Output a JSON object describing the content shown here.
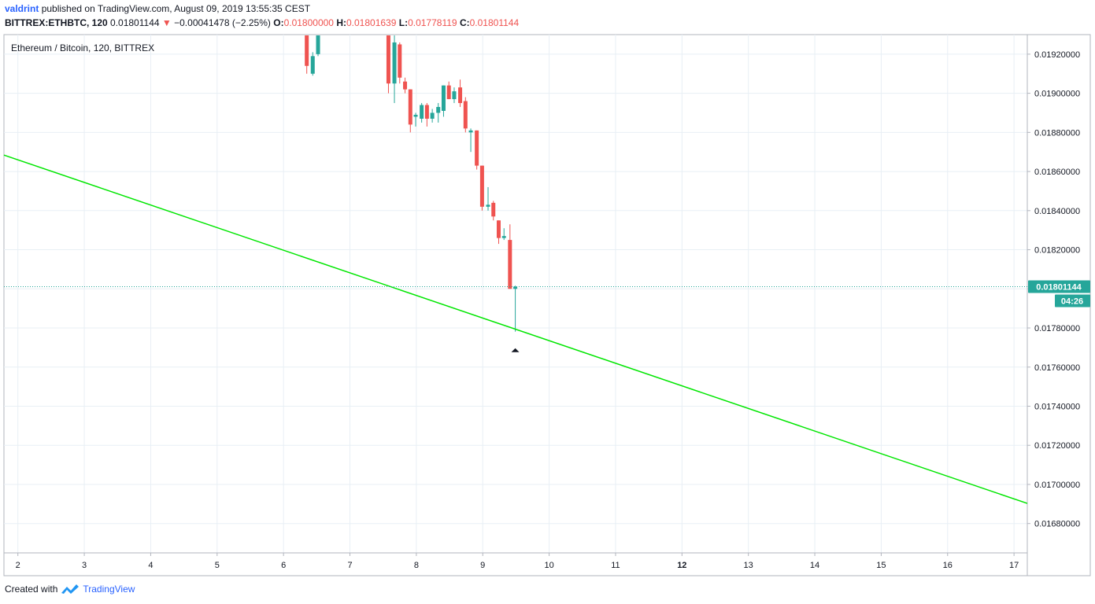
{
  "header": {
    "user": "valdrint",
    "published_text": "published on TradingView.com, August 09, 2019 13:55:35 CEST",
    "symbol": "BITTREX:ETHBTC, 120",
    "last": "0.01801144",
    "change": "−0.00041478 (−2.25%)",
    "o_label": "O:",
    "o_value": "0.01800000",
    "h_label": "H:",
    "h_value": "0.01801639",
    "l_label": "L:",
    "l_value": "0.01778119",
    "c_label": "C:",
    "c_value": "0.01801144"
  },
  "legend": "Ethereum / Bitcoin, 120, BITTREX",
  "price_badge": "0.01801144",
  "countdown_badge": "04:26",
  "footer": {
    "created": "Created with",
    "brand": "TradingView"
  },
  "colors": {
    "up": "#26a69a",
    "down": "#ef5350",
    "trendline": "#00e600",
    "price_line": "#26a69a",
    "grid": "#e8eff5"
  },
  "chart_data": {
    "type": "candlestick",
    "title": "Ethereum / Bitcoin, 120, BITTREX",
    "xlabel": "",
    "ylabel": "",
    "x_ticks": [
      "2",
      "3",
      "4",
      "5",
      "6",
      "7",
      "8",
      "9",
      "10",
      "11",
      "12",
      "13",
      "14",
      "15",
      "16",
      "17"
    ],
    "x_tick_values": [
      2,
      3,
      4,
      5,
      6,
      7,
      8,
      9,
      10,
      11,
      12,
      13,
      14,
      15,
      16,
      17
    ],
    "xlim": [
      1.79,
      17.2
    ],
    "y_ticks": [
      "0.01680000",
      "0.01700000",
      "0.01720000",
      "0.01740000",
      "0.01760000",
      "0.01780000",
      "0.01800000",
      "0.01820000",
      "0.01840000",
      "0.01860000",
      "0.01880000",
      "0.01900000",
      "0.01920000"
    ],
    "ylim": [
      0.01665,
      0.0193
    ],
    "last_price": 0.01801144,
    "trendline": {
      "start": [
        1.79,
        0.018684
      ],
      "end": [
        17.2,
        0.016903
      ]
    },
    "candles": [
      {
        "x": 6.35,
        "o": 0.0193,
        "h": 0.0193,
        "l": 0.0191,
        "c": 0.01914
      },
      {
        "x": 6.44,
        "o": 0.0191,
        "h": 0.01921,
        "l": 0.01909,
        "c": 0.01919
      },
      {
        "x": 6.52,
        "o": 0.0192,
        "h": 0.0193,
        "l": 0.01919,
        "c": 0.0193
      },
      {
        "x": 7.58,
        "o": 0.0193,
        "h": 0.0193,
        "l": 0.019,
        "c": 0.01905
      },
      {
        "x": 7.67,
        "o": 0.01905,
        "h": 0.0193,
        "l": 0.01895,
        "c": 0.01926
      },
      {
        "x": 7.75,
        "o": 0.01925,
        "h": 0.01926,
        "l": 0.01905,
        "c": 0.01908
      },
      {
        "x": 7.83,
        "o": 0.01906,
        "h": 0.01908,
        "l": 0.019,
        "c": 0.01902
      },
      {
        "x": 7.91,
        "o": 0.01902,
        "h": 0.01902,
        "l": 0.0188,
        "c": 0.01884
      },
      {
        "x": 7.99,
        "o": 0.01888,
        "h": 0.0189,
        "l": 0.01883,
        "c": 0.01889
      },
      {
        "x": 8.08,
        "o": 0.01887,
        "h": 0.01895,
        "l": 0.01885,
        "c": 0.01894
      },
      {
        "x": 8.16,
        "o": 0.01894,
        "h": 0.01895,
        "l": 0.01883,
        "c": 0.01887
      },
      {
        "x": 8.24,
        "o": 0.01887,
        "h": 0.01892,
        "l": 0.01885,
        "c": 0.0189
      },
      {
        "x": 8.33,
        "o": 0.0189,
        "h": 0.01895,
        "l": 0.01885,
        "c": 0.01893
      },
      {
        "x": 8.41,
        "o": 0.01891,
        "h": 0.01904,
        "l": 0.01888,
        "c": 0.01904
      },
      {
        "x": 8.49,
        "o": 0.01904,
        "h": 0.01906,
        "l": 0.01897,
        "c": 0.01897
      },
      {
        "x": 8.57,
        "o": 0.01897,
        "h": 0.01903,
        "l": 0.01895,
        "c": 0.01901
      },
      {
        "x": 8.66,
        "o": 0.01903,
        "h": 0.01907,
        "l": 0.01893,
        "c": 0.01895
      },
      {
        "x": 8.74,
        "o": 0.01896,
        "h": 0.01898,
        "l": 0.0188,
        "c": 0.01882
      },
      {
        "x": 8.82,
        "o": 0.0188,
        "h": 0.01882,
        "l": 0.0187,
        "c": 0.01881
      },
      {
        "x": 8.91,
        "o": 0.01881,
        "h": 0.01881,
        "l": 0.01861,
        "c": 0.01863
      },
      {
        "x": 8.99,
        "o": 0.01863,
        "h": 0.01863,
        "l": 0.0184,
        "c": 0.01842
      },
      {
        "x": 9.08,
        "o": 0.01842,
        "h": 0.01852,
        "l": 0.0184,
        "c": 0.01843
      },
      {
        "x": 9.16,
        "o": 0.01844,
        "h": 0.01845,
        "l": 0.01835,
        "c": 0.01837
      },
      {
        "x": 9.24,
        "o": 0.01835,
        "h": 0.01835,
        "l": 0.01823,
        "c": 0.01826
      },
      {
        "x": 9.32,
        "o": 0.01826,
        "h": 0.01831,
        "l": 0.01825,
        "c": 0.01827
      },
      {
        "x": 9.41,
        "o": 0.01825,
        "h": 0.01833,
        "l": 0.018,
        "c": 0.018
      },
      {
        "x": 9.49,
        "o": 0.018,
        "h": 0.01801639,
        "l": 0.01778119,
        "c": 0.01801144
      }
    ]
  }
}
